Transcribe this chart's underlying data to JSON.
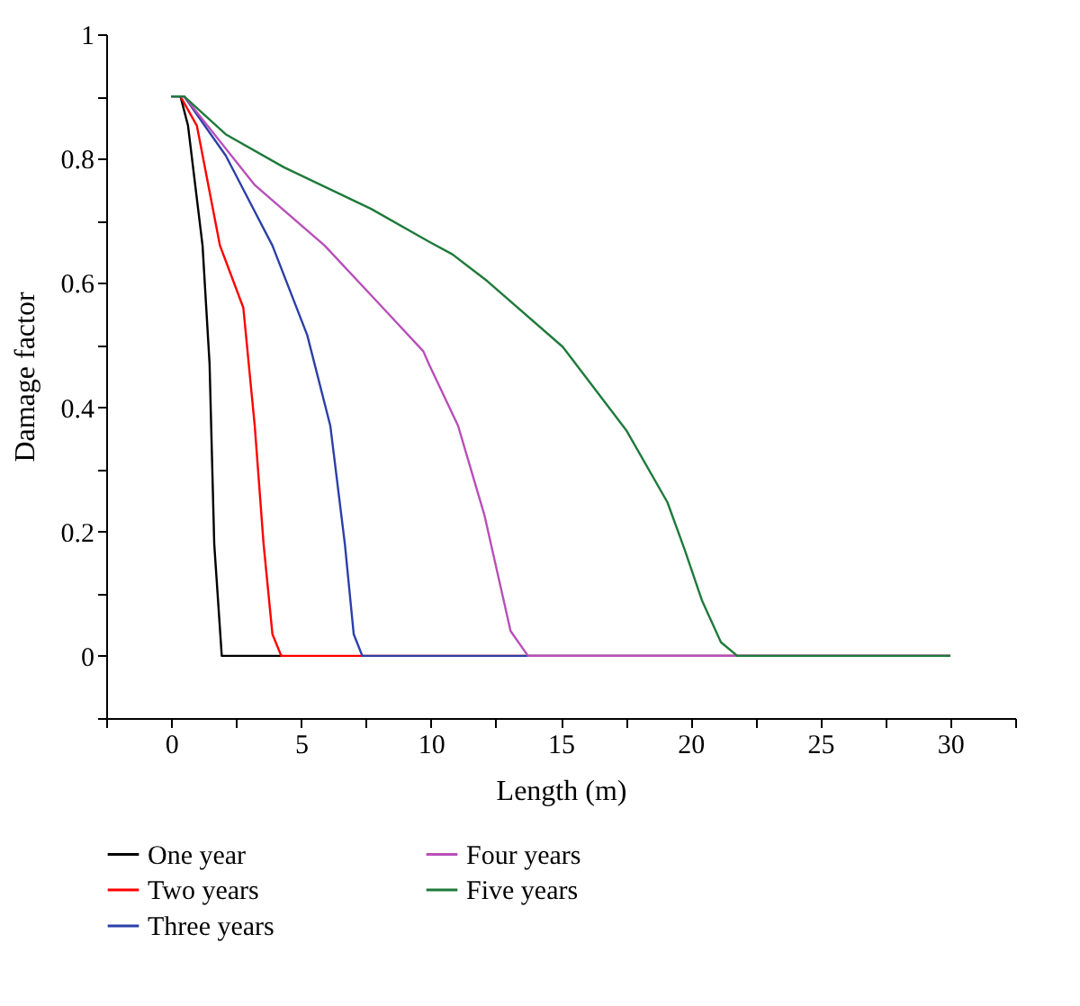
{
  "chart_data": {
    "type": "line",
    "xlabel": "Length (m)",
    "ylabel": "Damage factor",
    "xlim": [
      -2.5,
      32.5
    ],
    "ylim": [
      -0.1,
      1
    ],
    "xticks": [
      {
        "value": -2.5,
        "label": null
      },
      0,
      {
        "value": 2.5,
        "label": null
      },
      5,
      {
        "value": 7.5,
        "label": null
      },
      10,
      {
        "value": 12.5,
        "label": null
      },
      15,
      {
        "value": 17.5,
        "label": null
      },
      20,
      {
        "value": 22.5,
        "label": null
      },
      25,
      {
        "value": 27.5,
        "label": null
      },
      30,
      {
        "value": 32.5,
        "label": null
      }
    ],
    "yticks": [
      {
        "value": -0.1,
        "label": null
      },
      0,
      {
        "value": 0.1,
        "label": null
      },
      0.2,
      {
        "value": 0.3,
        "label": null
      },
      0.4,
      {
        "value": 0.5,
        "label": null
      },
      0.6,
      {
        "value": 0.7,
        "label": null
      },
      0.8,
      {
        "value": 0.9,
        "label": null
      },
      1
    ],
    "grid": false,
    "legend": "bottom",
    "marker": "none",
    "line_style": "solid",
    "series": [
      {
        "name": "One year",
        "color": "#000000",
        "x": [
          0,
          0.36,
          0.65,
          1.21,
          1.48,
          1.66,
          1.95,
          4.3
        ],
        "values": [
          0.9,
          0.9,
          0.853,
          0.66,
          0.47,
          0.18,
          0,
          0
        ]
      },
      {
        "name": "Two years",
        "color": "#ff0000",
        "x": [
          0.36,
          0.99,
          1.88,
          2.78,
          3.22,
          3.56,
          3.9,
          4.24,
          30
        ],
        "values": [
          0.9,
          0.853,
          0.66,
          0.56,
          0.37,
          0.18,
          0.035,
          0,
          0
        ]
      },
      {
        "name": "Three years",
        "color": "#2b3fa8",
        "x": [
          0,
          0.5,
          2.1,
          3.9,
          5.24,
          6.13,
          6.69,
          7.03,
          7.36,
          30
        ],
        "values": [
          0.9,
          0.9,
          0.805,
          0.66,
          0.516,
          0.37,
          0.18,
          0.035,
          0,
          0
        ]
      },
      {
        "name": "Four years",
        "color": "#b84fb8",
        "x": [
          0,
          0.5,
          3.23,
          5.91,
          8.15,
          9.71,
          9.94,
          11.05,
          11.84,
          12.06,
          13.07,
          13.74,
          30
        ],
        "values": [
          0.9,
          0.9,
          0.757,
          0.66,
          0.56,
          0.49,
          0.468,
          0.37,
          0.258,
          0.227,
          0.04,
          0,
          0
        ]
      },
      {
        "name": "Five years",
        "color": "#1e7a3a",
        "x": [
          0,
          0.5,
          2.1,
          4.34,
          7.7,
          9.94,
          10.83,
          12.17,
          15.08,
          17.54,
          19.11,
          19.78,
          20.45,
          21.17,
          21.8,
          30
        ],
        "values": [
          0.9,
          0.9,
          0.839,
          0.786,
          0.719,
          0.666,
          0.646,
          0.603,
          0.497,
          0.362,
          0.247,
          0.17,
          0.088,
          0.022,
          0,
          0
        ]
      }
    ]
  }
}
